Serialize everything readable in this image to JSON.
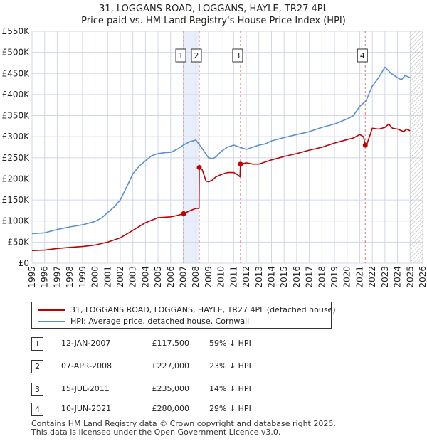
{
  "title": {
    "line1": "31, LOGGANS ROAD, LOGGANS, HAYLE, TR27 4PL",
    "line2": "Price paid vs. HM Land Registry's House Price Index (HPI)"
  },
  "colors": {
    "property_line": "#c00000",
    "hpi_line": "#5a8fd0",
    "grid": "#d0d7e6",
    "marker_line": "#e07070",
    "highlight_band": "#e8eefa",
    "plot_background": "#eef2f9",
    "future_hatch": "#b0b0b0"
  },
  "chart_data": {
    "type": "line",
    "title": "Price paid vs. HM Land Registry's House Price Index (HPI)",
    "xlabel": "",
    "ylabel": "",
    "xlim": [
      1995,
      2026
    ],
    "ylim": [
      0,
      550000
    ],
    "x_ticks": [
      1995,
      1996,
      1997,
      1998,
      1999,
      2000,
      2001,
      2002,
      2003,
      2004,
      2005,
      2006,
      2007,
      2008,
      2009,
      2010,
      2011,
      2012,
      2013,
      2014,
      2015,
      2016,
      2017,
      2018,
      2019,
      2020,
      2021,
      2022,
      2023,
      2024,
      2025,
      2026
    ],
    "y_ticks": [
      0,
      50000,
      100000,
      150000,
      200000,
      250000,
      300000,
      350000,
      400000,
      450000,
      500000,
      550000
    ],
    "y_tick_labels": [
      "£0",
      "£50K",
      "£100K",
      "£150K",
      "£200K",
      "£250K",
      "£300K",
      "£350K",
      "£400K",
      "£450K",
      "£500K",
      "£550K"
    ],
    "hatched_from": 2025.0,
    "series": [
      {
        "name": "31, LOGGANS ROAD, LOGGANS, HAYLE, TR27 4PL (detached house)",
        "color": "#c00000",
        "x": [
          1995.0,
          1996.0,
          1997.0,
          1998.0,
          1999.0,
          2000.0,
          2001.0,
          2002.0,
          2003.0,
          2004.0,
          2005.0,
          2006.0,
          2006.5,
          2007.03,
          2007.5,
          2008.0,
          2008.25,
          2008.27,
          2008.5,
          2008.8,
          2009.0,
          2009.3,
          2009.6,
          2010.0,
          2010.5,
          2011.0,
          2011.3,
          2011.5,
          2011.54,
          2012.0,
          2012.5,
          2013.0,
          2014.0,
          2015.0,
          2016.0,
          2017.0,
          2018.0,
          2019.0,
          2020.0,
          2020.5,
          2021.0,
          2021.3,
          2021.44,
          2021.6,
          2022.0,
          2022.5,
          2023.0,
          2023.3,
          2023.6,
          2024.0,
          2024.5,
          2024.7,
          2025.0
        ],
        "y": [
          30000,
          31000,
          35000,
          37500,
          39500,
          43000,
          50000,
          60000,
          78000,
          96000,
          108000,
          110000,
          113000,
          117500,
          124000,
          130000,
          130000,
          227000,
          222000,
          195000,
          193000,
          197000,
          205000,
          210000,
          215000,
          215000,
          210000,
          205000,
          235000,
          238000,
          235000,
          235000,
          245000,
          253000,
          260000,
          268000,
          275000,
          285000,
          293000,
          297000,
          305000,
          300000,
          280000,
          285000,
          320000,
          318000,
          322000,
          330000,
          320000,
          318000,
          312000,
          318000,
          314000
        ]
      },
      {
        "name": "HPI: Average price, detached house, Cornwall",
        "color": "#5a8fd0",
        "x": [
          1995.0,
          1996.0,
          1997.0,
          1998.0,
          1999.0,
          2000.0,
          2000.5,
          2001.0,
          2001.5,
          2002.0,
          2002.5,
          2003.0,
          2003.5,
          2004.0,
          2004.5,
          2005.0,
          2005.5,
          2006.0,
          2006.5,
          2007.0,
          2007.5,
          2008.0,
          2008.5,
          2009.0,
          2009.3,
          2009.6,
          2010.0,
          2010.5,
          2011.0,
          2011.5,
          2012.0,
          2012.5,
          2013.0,
          2013.5,
          2014.0,
          2015.0,
          2016.0,
          2017.0,
          2018.0,
          2019.0,
          2020.0,
          2020.5,
          2021.0,
          2021.5,
          2022.0,
          2022.5,
          2023.0,
          2023.5,
          2024.0,
          2024.3,
          2024.6,
          2025.0
        ],
        "y": [
          70000,
          72000,
          80000,
          86000,
          91000,
          99000,
          107000,
          120000,
          133000,
          150000,
          180000,
          212000,
          230000,
          243000,
          255000,
          260000,
          262000,
          263000,
          270000,
          280000,
          288000,
          292000,
          272000,
          250000,
          248000,
          252000,
          265000,
          275000,
          280000,
          275000,
          270000,
          275000,
          280000,
          283000,
          290000,
          298000,
          305000,
          312000,
          322000,
          330000,
          342000,
          350000,
          372000,
          385000,
          420000,
          440000,
          465000,
          450000,
          440000,
          435000,
          445000,
          440000
        ]
      }
    ],
    "markers": [
      {
        "label": "1",
        "x": 2007.03,
        "y": 117500
      },
      {
        "label": "2",
        "x": 2008.27,
        "y": 227000
      },
      {
        "label": "3",
        "x": 2011.54,
        "y": 235000
      },
      {
        "label": "4",
        "x": 2021.44,
        "y": 280000
      }
    ],
    "highlight_bands": [
      [
        2007.03,
        2008.27
      ],
      [
        2021.44,
        2021.44
      ]
    ]
  },
  "legend": {
    "items": [
      {
        "label": "31, LOGGANS ROAD, LOGGANS, HAYLE, TR27 4PL (detached house)"
      },
      {
        "label": "HPI: Average price, detached house, Cornwall"
      }
    ]
  },
  "transactions": [
    {
      "num": "1",
      "date": "12-JAN-2007",
      "price": "£117,500",
      "hpi": "59% ↓ HPI"
    },
    {
      "num": "2",
      "date": "07-APR-2008",
      "price": "£227,000",
      "hpi": "23% ↓ HPI"
    },
    {
      "num": "3",
      "date": "15-JUL-2011",
      "price": "£235,000",
      "hpi": "14% ↓ HPI"
    },
    {
      "num": "4",
      "date": "10-JUN-2021",
      "price": "£280,000",
      "hpi": "29% ↓ HPI"
    }
  ],
  "footer": {
    "line1": "Contains HM Land Registry data © Crown copyright and database right 2025.",
    "line2": "This data is licensed under the Open Government Licence v3.0."
  }
}
